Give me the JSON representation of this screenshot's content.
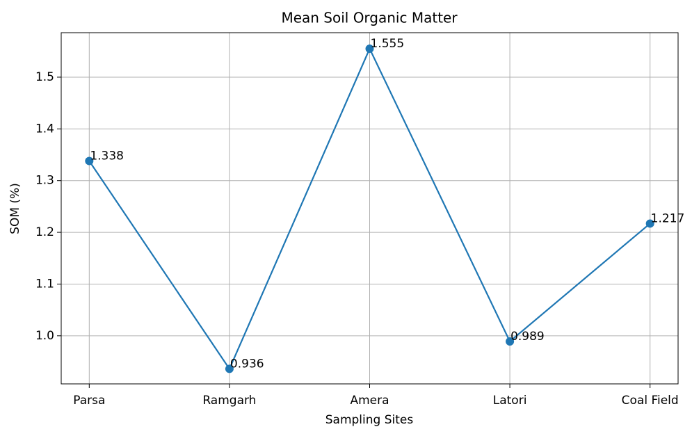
{
  "chart_data": {
    "type": "line",
    "title": "Mean Soil Organic Matter",
    "x_label": "Sampling Sites",
    "y_label": "SOM (%)",
    "categories": [
      "Parsa",
      "Ramgarh",
      "Amera",
      "Latori",
      "Coal Field"
    ],
    "values": [
      1.338,
      0.936,
      1.555,
      0.989,
      1.217
    ],
    "color": "#1f77b4",
    "ylim": [
      0.907,
      1.586
    ],
    "yticks": [
      {
        "value": 1,
        "label": "1.0"
      },
      1.1,
      1.2,
      1.3,
      1.4,
      1.5
    ],
    "grid": true
  }
}
